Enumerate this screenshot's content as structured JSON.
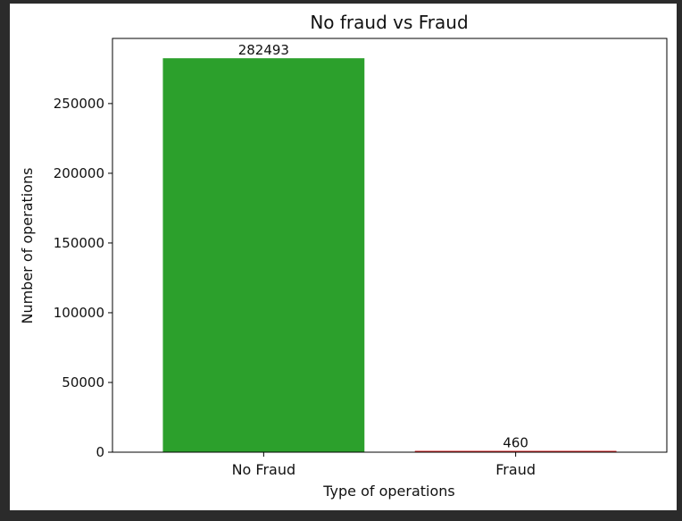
{
  "chart_data": {
    "type": "bar",
    "title": "No fraud vs Fraud",
    "xlabel": "Type of operations",
    "ylabel": "Number of operations",
    "categories": [
      "No Fraud",
      "Fraud"
    ],
    "values": [
      282493,
      460
    ],
    "data_labels": [
      "282493",
      "460"
    ],
    "bar_colors": [
      "#2ca02c",
      "#d62728"
    ],
    "ylim": [
      0,
      296700
    ],
    "yticks": [
      0,
      50000,
      100000,
      150000,
      200000,
      250000
    ],
    "ytick_labels": [
      "0",
      "50000",
      "100000",
      "150000",
      "200000",
      "250000"
    ],
    "grid": false,
    "legend": "none"
  }
}
